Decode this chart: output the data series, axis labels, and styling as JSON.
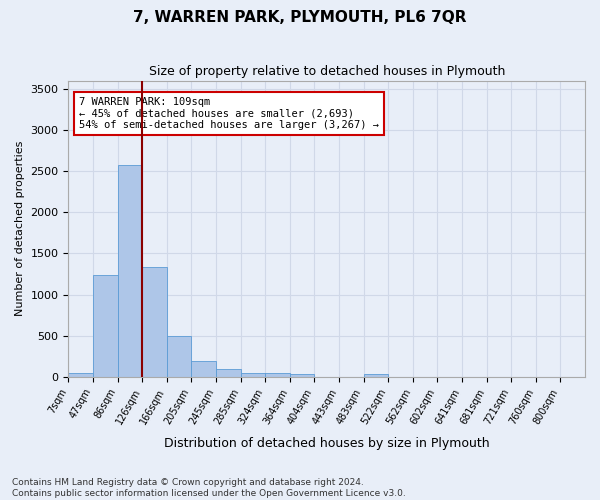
{
  "title": "7, WARREN PARK, PLYMOUTH, PL6 7QR",
  "subtitle": "Size of property relative to detached houses in Plymouth",
  "xlabel": "Distribution of detached houses by size in Plymouth",
  "ylabel": "Number of detached properties",
  "bin_labels": [
    "7sqm",
    "47sqm",
    "86sqm",
    "126sqm",
    "166sqm",
    "205sqm",
    "245sqm",
    "285sqm",
    "324sqm",
    "364sqm",
    "404sqm",
    "443sqm",
    "483sqm",
    "522sqm",
    "562sqm",
    "602sqm",
    "641sqm",
    "681sqm",
    "721sqm",
    "760sqm",
    "800sqm"
  ],
  "bar_values": [
    50,
    1240,
    2580,
    1340,
    500,
    190,
    100,
    50,
    45,
    30,
    0,
    0,
    30,
    0,
    0,
    0,
    0,
    0,
    0,
    0,
    0
  ],
  "bar_color": "#aec6e8",
  "bar_edge_color": "#5b9bd5",
  "grid_color": "#d0d8e8",
  "background_color": "#e8eef8",
  "vline_color": "#8b0000",
  "vline_pos": 3.0,
  "annotation_text": "7 WARREN PARK: 109sqm\n← 45% of detached houses are smaller (2,693)\n54% of semi-detached houses are larger (3,267) →",
  "annotation_box_color": "white",
  "annotation_box_edge": "#cc0000",
  "ylim": [
    0,
    3600
  ],
  "yticks": [
    0,
    500,
    1000,
    1500,
    2000,
    2500,
    3000,
    3500
  ],
  "footer_line1": "Contains HM Land Registry data © Crown copyright and database right 2024.",
  "footer_line2": "Contains public sector information licensed under the Open Government Licence v3.0."
}
